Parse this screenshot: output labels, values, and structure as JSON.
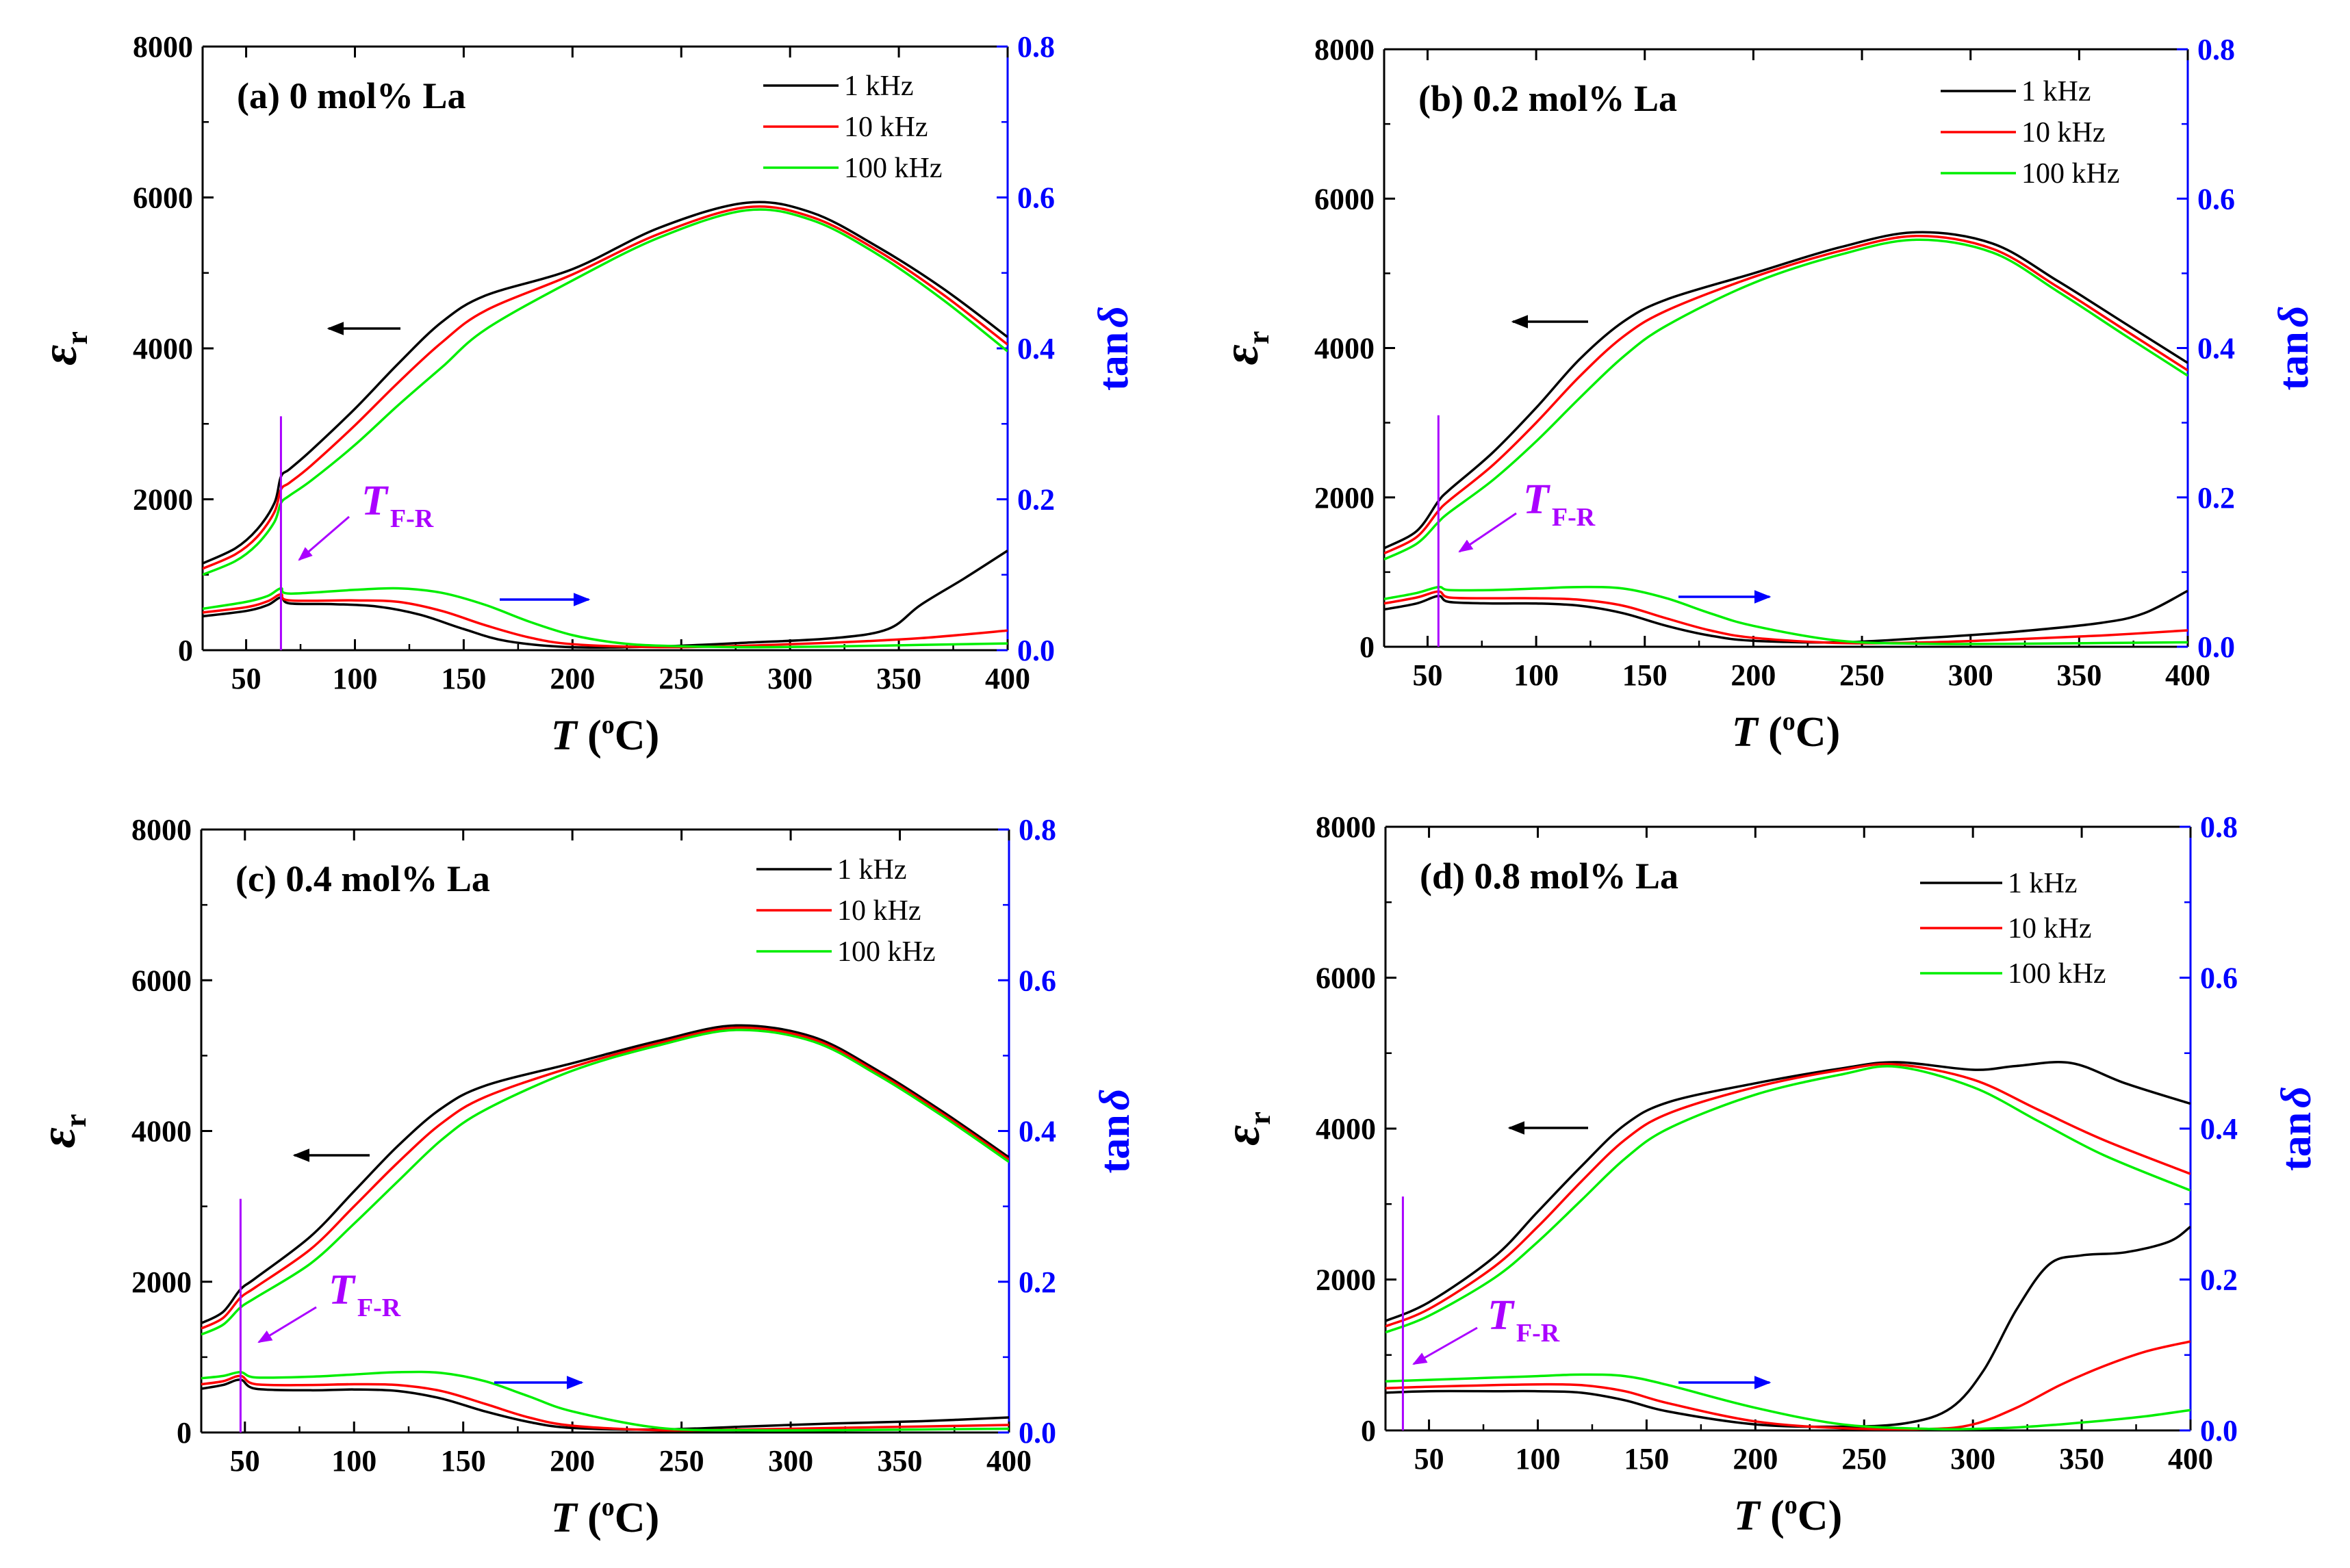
{
  "figure": {
    "xlabel_var": "T",
    "xlabel_unit_open": " (",
    "xlabel_unit_sup": "o",
    "xlabel_unit_close": "C)",
    "ylabel_left_symbol": "ε",
    "ylabel_left_sub": "r",
    "ylabel_right_prefix": "tan",
    "ylabel_right_symbol": "δ",
    "tfr_label": "T",
    "tfr_sub": "F-R",
    "colors": {
      "1 kHz": "#000000",
      "10 kHz": "#ff0000",
      "100 kHz": "#00ee00",
      "right_axis": "#0000ff",
      "tfr": "#aa00ff"
    }
  },
  "chart_data": [
    {
      "type": "line",
      "title": "(a) 0 mol% La",
      "xlabel": "T (oC)",
      "ylabel": "εr",
      "ylabel_right": "tanδ",
      "xlim": [
        30,
        400
      ],
      "ylim": [
        0,
        8000
      ],
      "ylim_right": [
        0,
        0.8
      ],
      "x_ticks": [
        50,
        100,
        150,
        200,
        250,
        300,
        350,
        400
      ],
      "y_ticks": [
        0,
        2000,
        4000,
        6000,
        8000
      ],
      "y_ticks_right": [
        "0.0",
        "0.2",
        "0.4",
        "0.6",
        "0.8"
      ],
      "legend": [
        "1 kHz",
        "10 kHz",
        "100 kHz"
      ],
      "tfr_temp": 66,
      "series_er": [
        {
          "name": "1 kHz",
          "x": [
            30,
            45,
            55,
            63,
            66,
            70,
            80,
            100,
            120,
            140,
            160,
            200,
            240,
            280,
            310,
            340,
            370,
            400
          ],
          "y": [
            1150,
            1350,
            1600,
            1950,
            2300,
            2400,
            2650,
            3200,
            3800,
            4350,
            4700,
            5050,
            5600,
            5930,
            5800,
            5350,
            4800,
            4150
          ]
        },
        {
          "name": "10 kHz",
          "x": [
            30,
            45,
            55,
            63,
            66,
            70,
            80,
            100,
            120,
            140,
            160,
            200,
            240,
            280,
            310,
            340,
            370,
            400
          ],
          "y": [
            1080,
            1270,
            1500,
            1830,
            2130,
            2220,
            2450,
            2980,
            3550,
            4080,
            4500,
            4980,
            5520,
            5870,
            5740,
            5300,
            4720,
            4050
          ]
        },
        {
          "name": "100 kHz",
          "x": [
            30,
            45,
            55,
            63,
            66,
            70,
            80,
            100,
            120,
            140,
            160,
            200,
            240,
            280,
            310,
            340,
            370,
            400
          ],
          "y": [
            1000,
            1180,
            1400,
            1700,
            1950,
            2050,
            2250,
            2720,
            3250,
            3750,
            4250,
            4900,
            5470,
            5830,
            5700,
            5250,
            4650,
            3960
          ]
        }
      ],
      "series_tan": [
        {
          "name": "1 kHz",
          "x": [
            30,
            50,
            60,
            66,
            70,
            90,
            110,
            130,
            150,
            170,
            200,
            240,
            280,
            320,
            345,
            360,
            380,
            400
          ],
          "y": [
            0.045,
            0.052,
            0.06,
            0.07,
            0.062,
            0.061,
            0.058,
            0.047,
            0.028,
            0.012,
            0.004,
            0.005,
            0.01,
            0.016,
            0.028,
            0.06,
            0.095,
            0.132
          ]
        },
        {
          "name": "10 kHz",
          "x": [
            30,
            50,
            60,
            66,
            70,
            100,
            120,
            140,
            160,
            180,
            200,
            240,
            280,
            320,
            360,
            400
          ],
          "y": [
            0.05,
            0.057,
            0.065,
            0.074,
            0.066,
            0.066,
            0.064,
            0.052,
            0.033,
            0.017,
            0.008,
            0.004,
            0.006,
            0.01,
            0.016,
            0.026
          ]
        },
        {
          "name": "100 kHz",
          "x": [
            30,
            50,
            60,
            66,
            70,
            100,
            120,
            140,
            160,
            180,
            200,
            220,
            240,
            280,
            320,
            360,
            400
          ],
          "y": [
            0.055,
            0.064,
            0.072,
            0.082,
            0.075,
            0.08,
            0.082,
            0.076,
            0.06,
            0.038,
            0.02,
            0.01,
            0.006,
            0.004,
            0.005,
            0.007,
            0.009
          ]
        }
      ]
    },
    {
      "type": "line",
      "title": "(b) 0.2 mol% La",
      "xlabel": "T (oC)",
      "ylabel": "εr",
      "ylabel_right": "tanδ",
      "xlim": [
        30,
        400
      ],
      "ylim": [
        0,
        8000
      ],
      "ylim_right": [
        0,
        0.8
      ],
      "x_ticks": [
        50,
        100,
        150,
        200,
        250,
        300,
        350,
        400
      ],
      "y_ticks": [
        0,
        2000,
        4000,
        6000,
        8000
      ],
      "y_ticks_right": [
        "0.0",
        "0.2",
        "0.4",
        "0.6",
        "0.8"
      ],
      "legend": [
        "1 kHz",
        "10 kHz",
        "100 kHz"
      ],
      "tfr_temp": 55,
      "series_er": [
        {
          "name": "1 kHz",
          "x": [
            30,
            45,
            55,
            60,
            80,
            100,
            120,
            140,
            160,
            200,
            240,
            275,
            310,
            340,
            370,
            400
          ],
          "y": [
            1320,
            1550,
            1950,
            2100,
            2600,
            3200,
            3850,
            4350,
            4650,
            5000,
            5350,
            5550,
            5400,
            4900,
            4350,
            3800
          ]
        },
        {
          "name": "10 kHz",
          "x": [
            30,
            45,
            55,
            60,
            80,
            100,
            120,
            140,
            160,
            200,
            240,
            275,
            310,
            340,
            370,
            400
          ],
          "y": [
            1250,
            1470,
            1820,
            1960,
            2430,
            3000,
            3620,
            4150,
            4500,
            4950,
            5300,
            5500,
            5330,
            4820,
            4260,
            3700
          ]
        },
        {
          "name": "100 kHz",
          "x": [
            30,
            45,
            55,
            60,
            80,
            100,
            120,
            140,
            160,
            200,
            240,
            275,
            310,
            340,
            370,
            400
          ],
          "y": [
            1170,
            1380,
            1670,
            1800,
            2230,
            2750,
            3330,
            3880,
            4300,
            4870,
            5250,
            5450,
            5280,
            4760,
            4190,
            3630
          ]
        }
      ],
      "series_tan": [
        {
          "name": "1 kHz",
          "x": [
            30,
            45,
            55,
            60,
            80,
            100,
            120,
            140,
            160,
            180,
            200,
            240,
            280,
            320,
            360,
            380,
            400
          ],
          "y": [
            0.05,
            0.058,
            0.068,
            0.06,
            0.058,
            0.058,
            0.055,
            0.045,
            0.028,
            0.015,
            0.008,
            0.006,
            0.012,
            0.02,
            0.032,
            0.045,
            0.075
          ]
        },
        {
          "name": "10 kHz",
          "x": [
            30,
            45,
            55,
            60,
            80,
            100,
            120,
            140,
            160,
            180,
            200,
            240,
            280,
            320,
            360,
            400
          ],
          "y": [
            0.058,
            0.066,
            0.074,
            0.066,
            0.065,
            0.065,
            0.063,
            0.055,
            0.038,
            0.022,
            0.012,
            0.005,
            0.006,
            0.01,
            0.015,
            0.022
          ]
        },
        {
          "name": "100 kHz",
          "x": [
            30,
            45,
            55,
            60,
            80,
            100,
            120,
            140,
            160,
            180,
            200,
            240,
            280,
            320,
            360,
            400
          ],
          "y": [
            0.064,
            0.072,
            0.08,
            0.076,
            0.076,
            0.078,
            0.08,
            0.078,
            0.065,
            0.045,
            0.028,
            0.008,
            0.004,
            0.004,
            0.005,
            0.006
          ]
        }
      ]
    },
    {
      "type": "line",
      "title": "(c) 0.4 mol% La",
      "xlabel": "T (oC)",
      "ylabel": "εr",
      "ylabel_right": "tanδ",
      "xlim": [
        30,
        400
      ],
      "ylim": [
        0,
        8000
      ],
      "ylim_right": [
        0,
        0.8
      ],
      "x_ticks": [
        50,
        100,
        150,
        200,
        250,
        300,
        350,
        400
      ],
      "y_ticks": [
        0,
        2000,
        4000,
        6000,
        8000
      ],
      "y_ticks_right": [
        "0.0",
        "0.2",
        "0.4",
        "0.6",
        "0.8"
      ],
      "legend": [
        "1 kHz",
        "10 kHz",
        "100 kHz"
      ],
      "tfr_temp": 48,
      "series_er": [
        {
          "name": "1 kHz",
          "x": [
            30,
            40,
            48,
            55,
            80,
            100,
            120,
            140,
            160,
            200,
            240,
            275,
            310,
            340,
            370,
            400
          ],
          "y": [
            1450,
            1600,
            1900,
            2050,
            2600,
            3200,
            3800,
            4300,
            4600,
            4900,
            5200,
            5400,
            5250,
            4800,
            4250,
            3650
          ]
        },
        {
          "name": "10 kHz",
          "x": [
            30,
            40,
            48,
            55,
            80,
            100,
            120,
            140,
            160,
            200,
            240,
            275,
            310,
            340,
            370,
            400
          ],
          "y": [
            1380,
            1520,
            1790,
            1930,
            2430,
            3000,
            3580,
            4100,
            4450,
            4850,
            5170,
            5370,
            5220,
            4770,
            4220,
            3620
          ]
        },
        {
          "name": "100 kHz",
          "x": [
            30,
            40,
            48,
            55,
            80,
            100,
            120,
            140,
            160,
            200,
            240,
            275,
            310,
            340,
            370,
            400
          ],
          "y": [
            1300,
            1430,
            1660,
            1790,
            2240,
            2770,
            3330,
            3880,
            4280,
            4800,
            5140,
            5340,
            5190,
            4740,
            4190,
            3590
          ]
        }
      ],
      "series_tan": [
        {
          "name": "1 kHz",
          "x": [
            30,
            40,
            48,
            55,
            80,
            100,
            120,
            140,
            160,
            180,
            200,
            240,
            280,
            320,
            360,
            400
          ],
          "y": [
            0.058,
            0.063,
            0.07,
            0.058,
            0.056,
            0.057,
            0.055,
            0.045,
            0.028,
            0.014,
            0.006,
            0.004,
            0.008,
            0.012,
            0.015,
            0.02
          ]
        },
        {
          "name": "10 kHz",
          "x": [
            30,
            40,
            48,
            55,
            80,
            100,
            120,
            140,
            160,
            180,
            200,
            240,
            280,
            320,
            360,
            400
          ],
          "y": [
            0.064,
            0.068,
            0.075,
            0.064,
            0.063,
            0.064,
            0.063,
            0.055,
            0.038,
            0.02,
            0.009,
            0.003,
            0.004,
            0.006,
            0.008,
            0.01
          ]
        },
        {
          "name": "100 kHz",
          "x": [
            30,
            40,
            48,
            55,
            80,
            100,
            120,
            140,
            160,
            180,
            200,
            240,
            280,
            320,
            360,
            400
          ],
          "y": [
            0.072,
            0.075,
            0.08,
            0.073,
            0.074,
            0.077,
            0.08,
            0.079,
            0.068,
            0.048,
            0.028,
            0.006,
            0.003,
            0.003,
            0.004,
            0.005
          ]
        }
      ]
    },
    {
      "type": "line",
      "title": "(d) 0.8 mol% La",
      "xlabel": "T (oC)",
      "ylabel": "εr",
      "ylabel_right": "tanδ",
      "xlim": [
        30,
        400
      ],
      "ylim": [
        0,
        8000
      ],
      "ylim_right": [
        0,
        0.8
      ],
      "x_ticks": [
        50,
        100,
        150,
        200,
        250,
        300,
        350,
        400
      ],
      "y_ticks": [
        0,
        2000,
        4000,
        6000,
        8000
      ],
      "y_ticks_right": [
        "0.0",
        "0.2",
        "0.4",
        "0.6",
        "0.8"
      ],
      "legend": [
        "1 kHz",
        "10 kHz",
        "100 kHz"
      ],
      "tfr_temp": 38,
      "series_er": [
        {
          "name": "1 kHz",
          "x": [
            30,
            50,
            80,
            100,
            120,
            140,
            160,
            200,
            240,
            265,
            300,
            320,
            345,
            370,
            400
          ],
          "y": [
            1450,
            1700,
            2300,
            2900,
            3500,
            4050,
            4350,
            4600,
            4800,
            4880,
            4780,
            4830,
            4870,
            4600,
            4330
          ]
        },
        {
          "name": "10 kHz",
          "x": [
            30,
            50,
            80,
            100,
            120,
            140,
            160,
            200,
            240,
            265,
            300,
            330,
            360,
            400
          ],
          "y": [
            1380,
            1610,
            2170,
            2700,
            3300,
            3850,
            4200,
            4550,
            4780,
            4850,
            4650,
            4250,
            3850,
            3400
          ]
        },
        {
          "name": "100 kHz",
          "x": [
            30,
            50,
            80,
            100,
            120,
            140,
            160,
            200,
            240,
            265,
            300,
            330,
            360,
            400
          ],
          "y": [
            1300,
            1520,
            2020,
            2500,
            3050,
            3600,
            4000,
            4450,
            4720,
            4820,
            4550,
            4100,
            3650,
            3180
          ]
        }
      ],
      "series_tan": [
        {
          "name": "1 kHz",
          "x": [
            30,
            50,
            80,
            100,
            120,
            140,
            160,
            200,
            240,
            270,
            290,
            305,
            320,
            335,
            350,
            370,
            390,
            400
          ],
          "y": [
            0.05,
            0.052,
            0.052,
            0.052,
            0.05,
            0.04,
            0.025,
            0.008,
            0.005,
            0.01,
            0.03,
            0.08,
            0.16,
            0.22,
            0.232,
            0.236,
            0.25,
            0.27
          ]
        },
        {
          "name": "10 kHz",
          "x": [
            30,
            50,
            80,
            100,
            120,
            140,
            160,
            200,
            240,
            280,
            300,
            320,
            340,
            360,
            380,
            400
          ],
          "y": [
            0.056,
            0.058,
            0.06,
            0.061,
            0.06,
            0.052,
            0.036,
            0.012,
            0.003,
            0.002,
            0.008,
            0.03,
            0.06,
            0.085,
            0.105,
            0.118
          ]
        },
        {
          "name": "100 kHz",
          "x": [
            30,
            50,
            80,
            100,
            120,
            140,
            160,
            200,
            240,
            280,
            300,
            320,
            340,
            360,
            380,
            400
          ],
          "y": [
            0.065,
            0.067,
            0.07,
            0.072,
            0.074,
            0.072,
            0.06,
            0.03,
            0.008,
            0.002,
            0.002,
            0.004,
            0.008,
            0.013,
            0.019,
            0.027
          ]
        }
      ]
    }
  ]
}
